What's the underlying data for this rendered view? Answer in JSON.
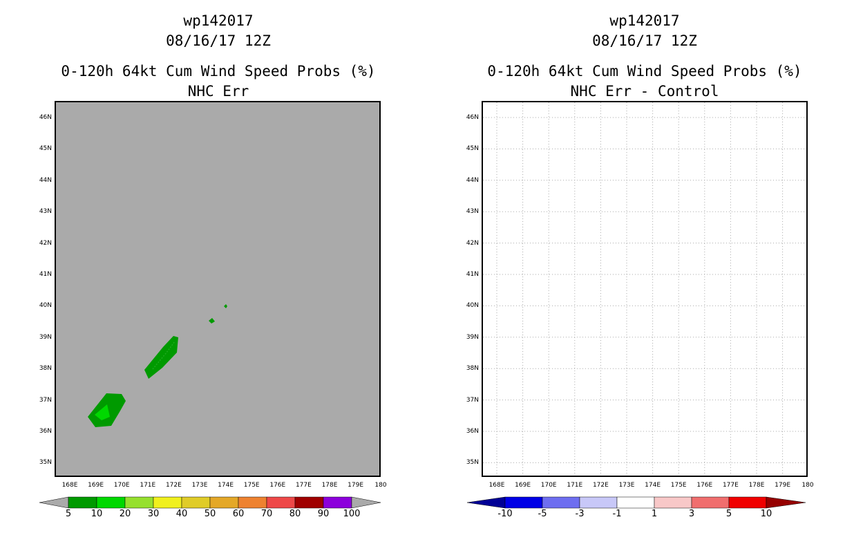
{
  "left_panel": {
    "title_lines": [
      "wp142017",
      "08/16/17 12Z",
      "0-120h 64kt Cum Wind Speed Probs (%)",
      "NHC Err"
    ],
    "lat_labels": [
      "46N",
      "45N",
      "44N",
      "43N",
      "42N",
      "41N",
      "40N",
      "39N",
      "38N",
      "37N",
      "36N",
      "35N"
    ],
    "lon_labels": [
      "168E",
      "169E",
      "170E",
      "171E",
      "172E",
      "173E",
      "174E",
      "175E",
      "176E",
      "177E",
      "178E",
      "179E",
      "180"
    ],
    "colorbar": {
      "labels": [
        "5",
        "10",
        "20",
        "30",
        "40",
        "50",
        "60",
        "70",
        "80",
        "90",
        "100"
      ],
      "colors": [
        "#009a00",
        "#00d800",
        "#96e02e",
        "#f0f01e",
        "#e0cc28",
        "#e4a828",
        "#ee8230",
        "#ee4848",
        "#a00000",
        "#8c00dc"
      ],
      "end_color": "#aaaaaa"
    },
    "background_color": "#aaaaaa"
  },
  "right_panel": {
    "title_lines": [
      "wp142017",
      "08/16/17 12Z",
      "0-120h 64kt Cum Wind Speed Probs (%)",
      "NHC Err - Control"
    ],
    "lat_labels": [
      "46N",
      "45N",
      "44N",
      "43N",
      "42N",
      "41N",
      "40N",
      "39N",
      "38N",
      "37N",
      "36N",
      "35N"
    ],
    "lon_labels": [
      "168E",
      "169E",
      "170E",
      "171E",
      "172E",
      "173E",
      "174E",
      "175E",
      "176E",
      "177E",
      "178E",
      "179E",
      "180"
    ],
    "colorbar": {
      "labels": [
        "-10",
        "-5",
        "-3",
        "-1",
        "1",
        "3",
        "5",
        "10"
      ],
      "colors": [
        "#0000e6",
        "#6e6ef0",
        "#c8c8f8",
        "#ffffff",
        "#f8c8c8",
        "#f06e6e",
        "#f00000"
      ],
      "low_color": "#000096",
      "high_color": "#960000"
    }
  }
}
